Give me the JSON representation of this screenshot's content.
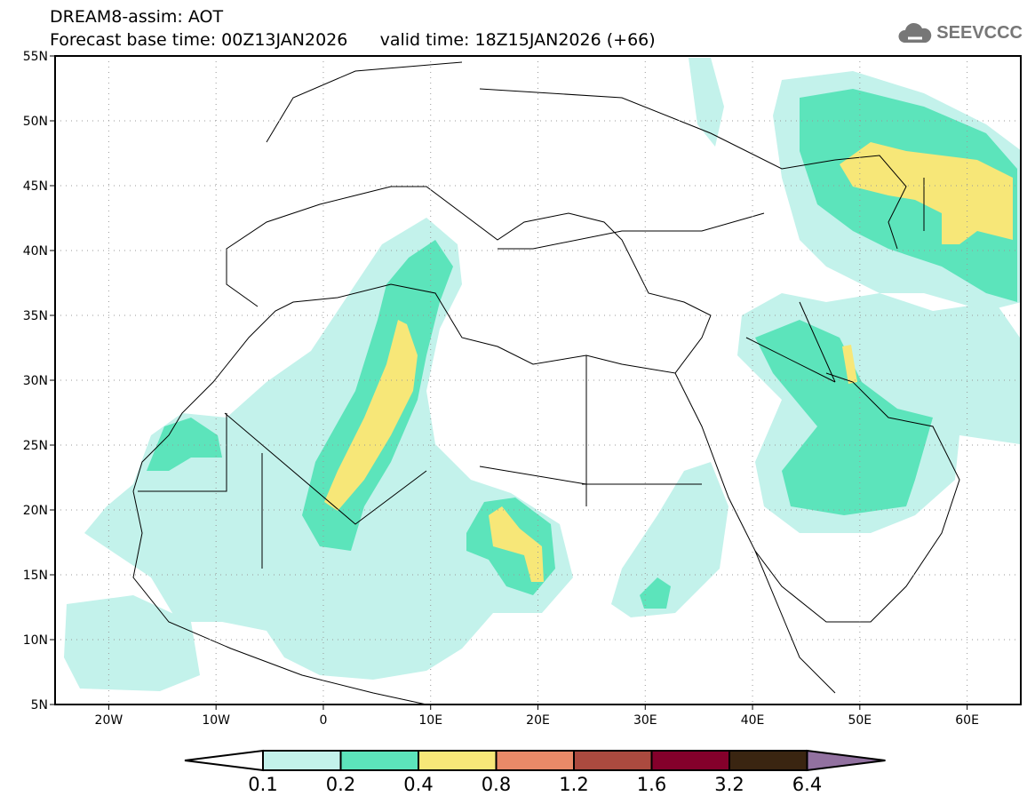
{
  "header": {
    "title": "DREAM8-assim: AOT",
    "subtitle": "Forecast base time: 00Z13JAN2026      valid time: 18Z15JAN2026 (+66)"
  },
  "logo": {
    "text": "SEEVCCC",
    "icon": "cloud-icon"
  },
  "map": {
    "lon_range": [
      -25,
      65
    ],
    "lat_range": [
      5,
      55
    ],
    "lat_ticks": [
      "55N",
      "50N",
      "45N",
      "40N",
      "35N",
      "30N",
      "25N",
      "20N",
      "15N",
      "10N",
      "5N"
    ],
    "lon_ticks": [
      "20W",
      "10W",
      "0",
      "10E",
      "20E",
      "30E",
      "40E",
      "50E",
      "60E"
    ]
  },
  "colorbar": {
    "labels": [
      "0.1",
      "0.2",
      "0.4",
      "0.8",
      "1.2",
      "1.6",
      "3.2",
      "6.4"
    ],
    "colors": [
      "#c3f2eb",
      "#5ce4bb",
      "#f7e778",
      "#e98a68",
      "#ab4a3f",
      "#84002b",
      "#3a2511",
      "#9271a0"
    ]
  }
}
